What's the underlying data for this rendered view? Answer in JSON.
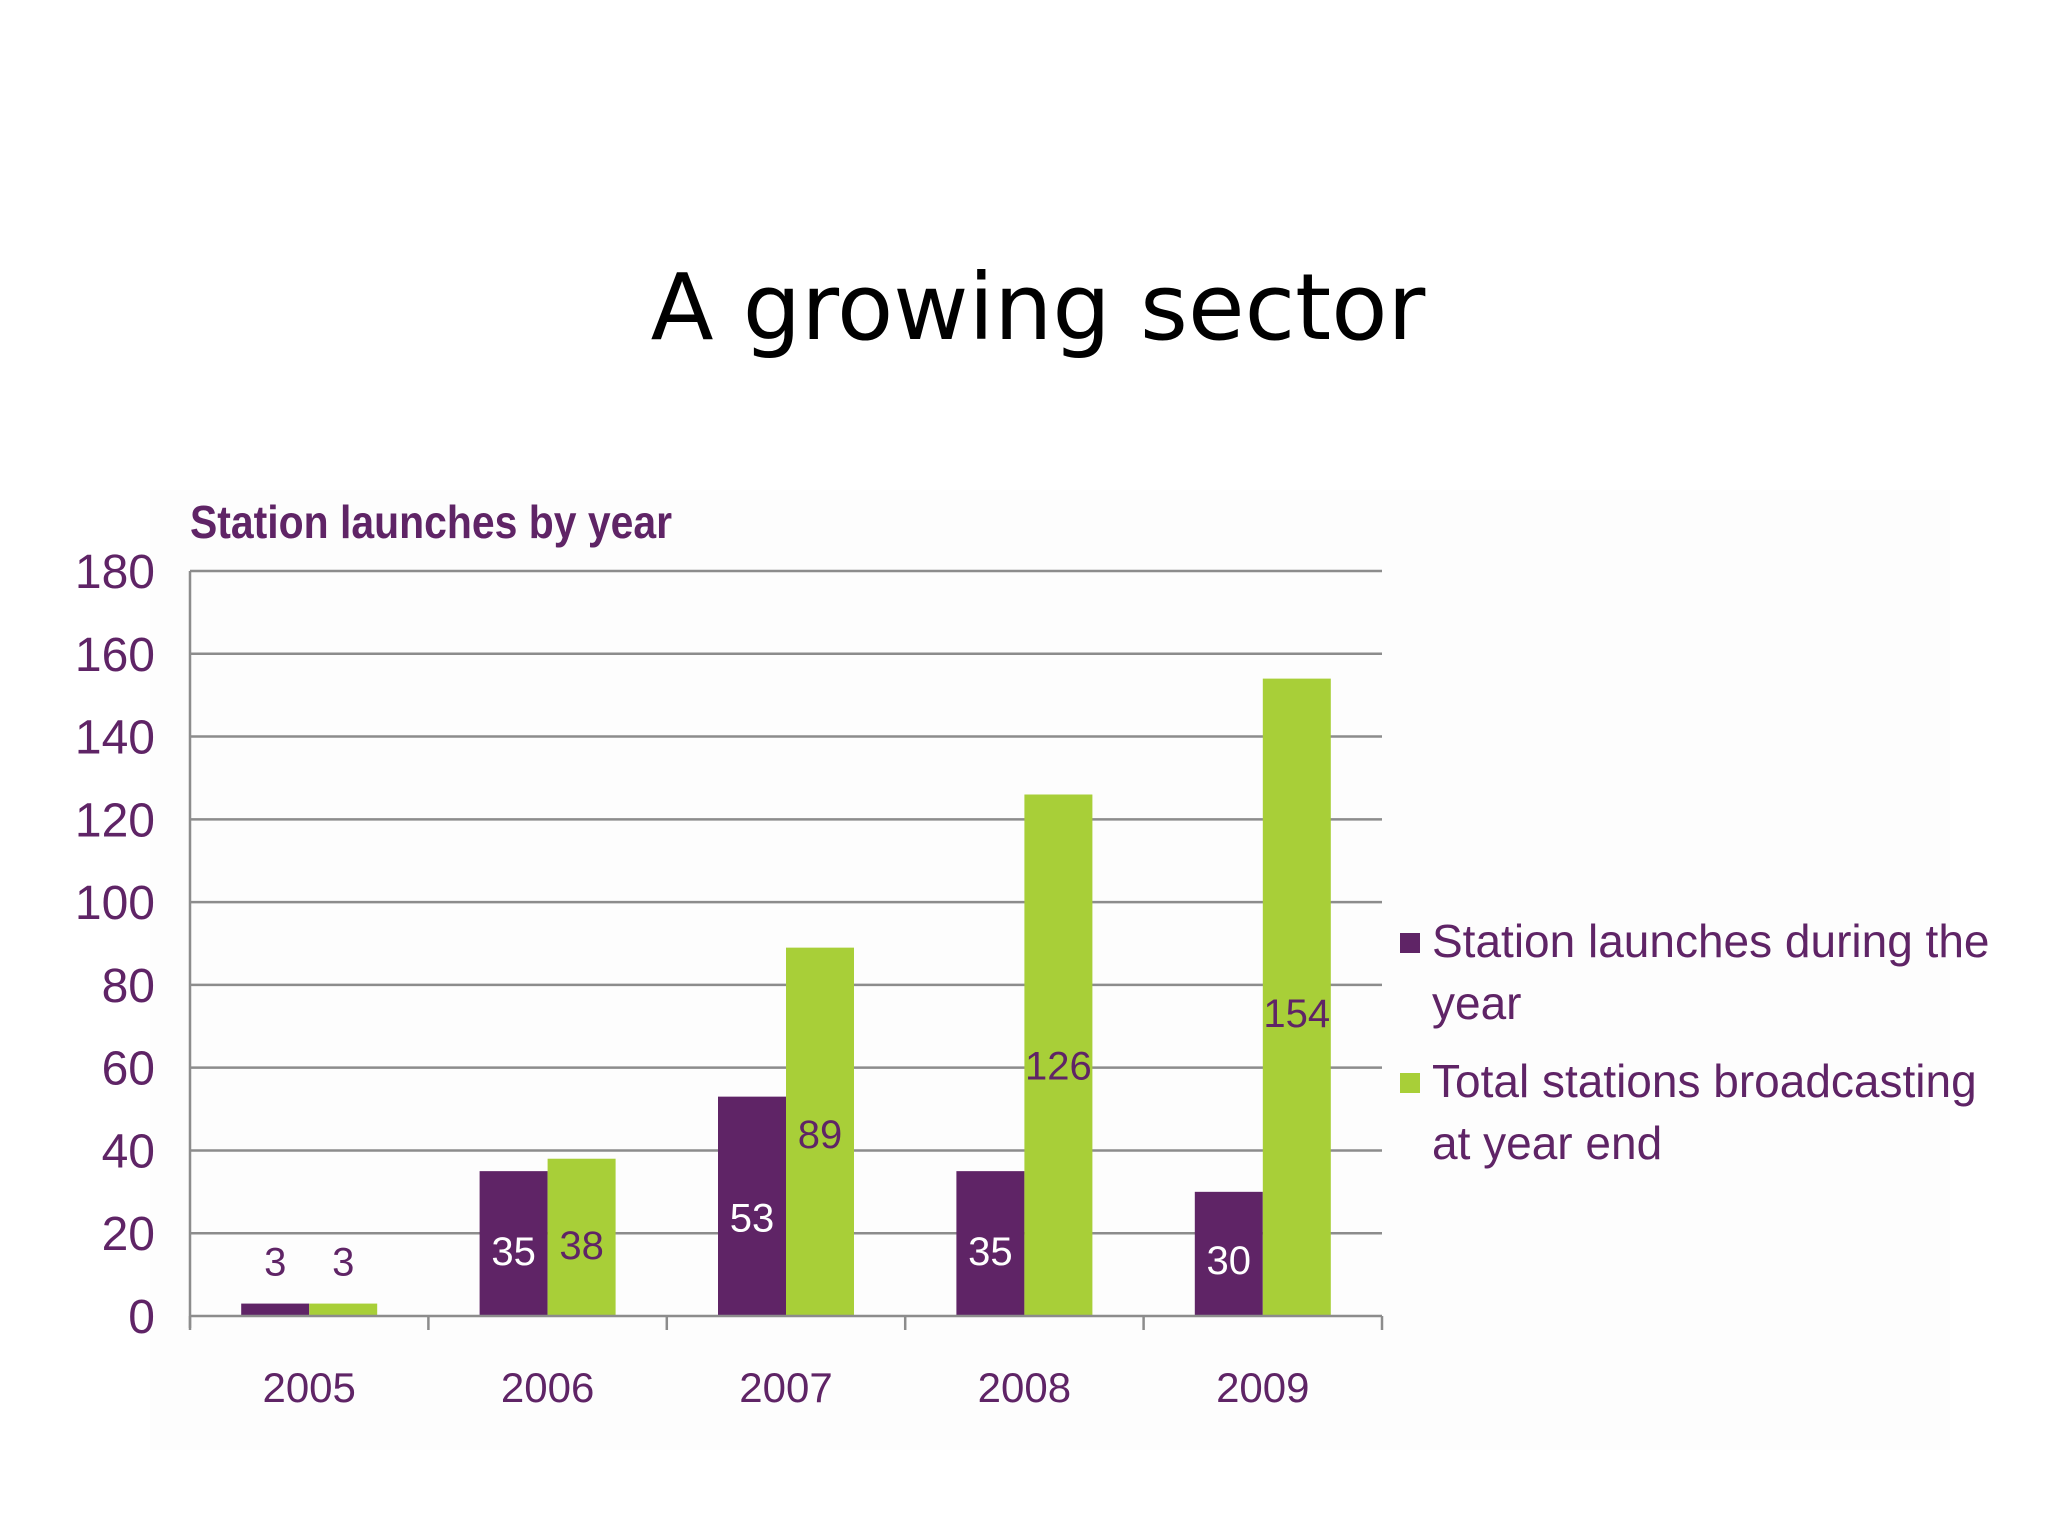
{
  "slide": {
    "title": "A growing sector"
  },
  "colors": {
    "launches": "#5f2466",
    "total": "#a8cf38",
    "axis_text": "#5f2466",
    "label_dark": "#5f2466",
    "label_light": "#ffffff",
    "grid": "#8c8c8c"
  },
  "chart_data": {
    "type": "bar",
    "title": "Station launches by year",
    "categories": [
      "2005",
      "2006",
      "2007",
      "2008",
      "2009"
    ],
    "series": [
      {
        "name": "Station launches during the year",
        "values": [
          3,
          35,
          53,
          35,
          30
        ]
      },
      {
        "name": "Total stations broadcasting at year end",
        "values": [
          3,
          38,
          89,
          126,
          154
        ]
      }
    ],
    "ylim": [
      0,
      180
    ],
    "yticks": [
      0,
      20,
      40,
      60,
      80,
      100,
      120,
      140,
      160,
      180
    ],
    "grid": true,
    "legend_position": "right",
    "legend_lines": [
      [
        "Station launches during the",
        "year"
      ],
      [
        "Total stations broadcasting",
        "at year end"
      ]
    ]
  }
}
